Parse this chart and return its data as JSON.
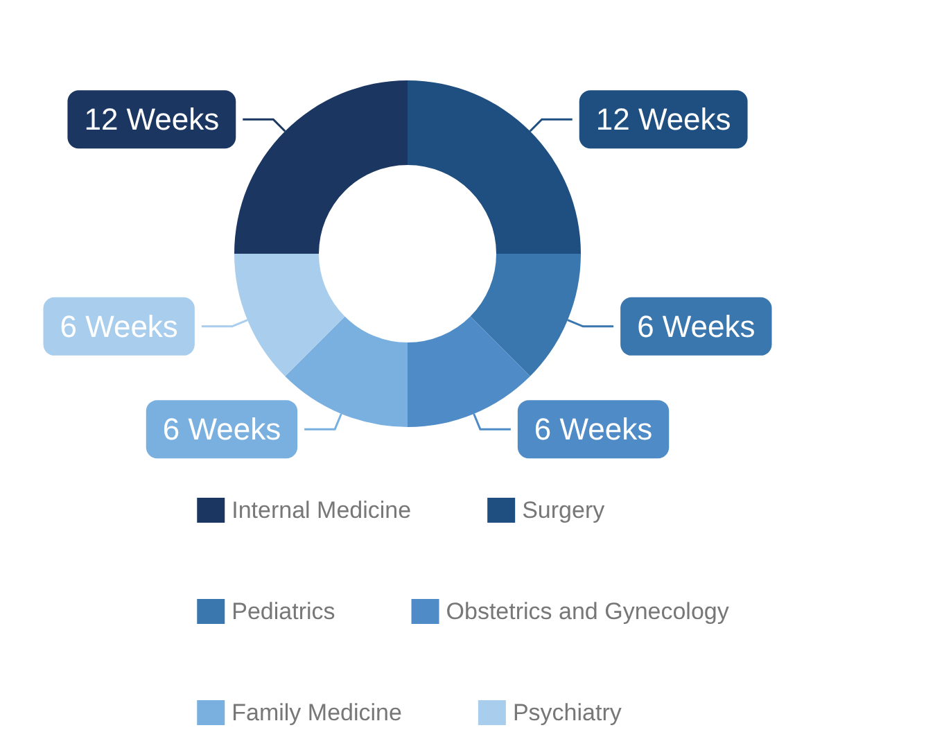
{
  "chart_data": {
    "type": "donut",
    "categories": [
      "Internal Medicine",
      "Surgery",
      "Pediatrics",
      "Obstetrics and Gynecology",
      "Family Medicine",
      "Psychiatry"
    ],
    "values": [
      12,
      12,
      6,
      6,
      6,
      6
    ],
    "colors": [
      "#1b3761",
      "#1e4f80",
      "#3a77ae",
      "#4f8cc7",
      "#79b0df",
      "#a9cdec"
    ],
    "value_labels": [
      "12 Weeks",
      "12 Weeks",
      "6 Weeks",
      "6 Weeks",
      "6 Weeks",
      "6 Weeks"
    ],
    "legend": "bottom"
  }
}
